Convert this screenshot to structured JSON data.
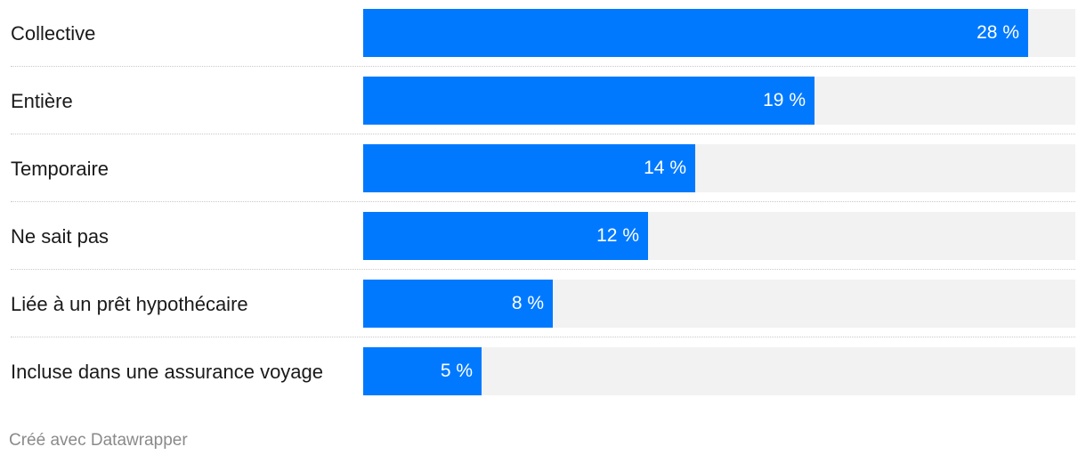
{
  "chart_data": {
    "type": "bar",
    "orientation": "horizontal",
    "categories": [
      "Collective",
      "Entière",
      "Temporaire",
      "Ne sait pas",
      "Liée à un prêt hypothécaire",
      "Incluse dans une assurance voyage"
    ],
    "values": [
      28,
      19,
      14,
      12,
      8,
      5
    ],
    "value_labels": [
      "28 %",
      "19 %",
      "14 %",
      "12 %",
      "8 %",
      "5 %"
    ],
    "xlim": [
      0,
      30
    ],
    "grid": false,
    "bar_color": "#0079ff",
    "track_color": "#f2f2f2"
  },
  "footer": {
    "credit": "Créé avec Datawrapper"
  }
}
